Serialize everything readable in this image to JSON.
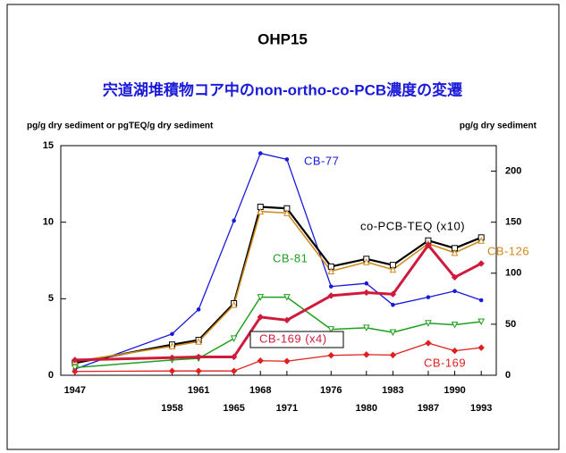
{
  "page_label": "OHP15",
  "chart_data": {
    "type": "line",
    "title": "宍道湖堆積物コア中のnon-ortho-co-PCB濃度の変遷",
    "y_label": "pg/g dry sediment or pgTEQ/g dry sediment",
    "y2_label": "pg/g dry sediment",
    "x": [
      1947,
      1958,
      1961,
      1965,
      1968,
      1971,
      1976,
      1980,
      1983,
      1987,
      1990,
      1993
    ],
    "xlim": [
      1945.4,
      1994.7
    ],
    "xticks": [
      1947,
      1958,
      1961,
      1965,
      1968,
      1971,
      1976,
      1980,
      1983,
      1987,
      1990,
      1993
    ],
    "ylim": [
      0,
      15
    ],
    "yticks": [
      0,
      5,
      10,
      15
    ],
    "y2lim": [
      0,
      225
    ],
    "y2ticks": [
      0,
      50,
      100,
      150,
      200
    ],
    "grid": false,
    "series": [
      {
        "name": "CB-77",
        "color": "#1a1ad8",
        "values": [
          0.4,
          2.7,
          4.3,
          10.1,
          14.5,
          14.1,
          5.8,
          6.0,
          4.6,
          5.1,
          5.5,
          4.9
        ]
      },
      {
        "name": "co-PCB-TEQ (x10)",
        "color": "#000000",
        "values": [
          0.8,
          2.0,
          2.3,
          4.7,
          11.0,
          10.9,
          7.1,
          7.6,
          7.2,
          8.8,
          8.3,
          9.0
        ]
      },
      {
        "name": "CB-126",
        "color": "#d08a1c",
        "values": [
          0.9,
          1.9,
          2.2,
          4.6,
          10.7,
          10.6,
          6.8,
          7.4,
          6.9,
          8.6,
          8.0,
          8.8
        ]
      },
      {
        "name": "CB-81",
        "color": "#1ea01e",
        "values": [
          0.5,
          1.0,
          1.1,
          2.4,
          5.1,
          5.1,
          3.0,
          3.1,
          2.8,
          3.4,
          3.3,
          3.5
        ]
      },
      {
        "name": "CB-169 (x4)",
        "color": "#d01a3c",
        "values": [
          1.0,
          1.15,
          1.2,
          1.2,
          3.8,
          3.6,
          5.2,
          5.4,
          5.3,
          8.5,
          6.4,
          7.3
        ]
      },
      {
        "name": "CB-169",
        "color": "#e02020",
        "values": [
          0.25,
          0.28,
          0.28,
          0.28,
          0.95,
          0.92,
          1.3,
          1.35,
          1.32,
          2.1,
          1.6,
          1.8
        ]
      }
    ]
  }
}
